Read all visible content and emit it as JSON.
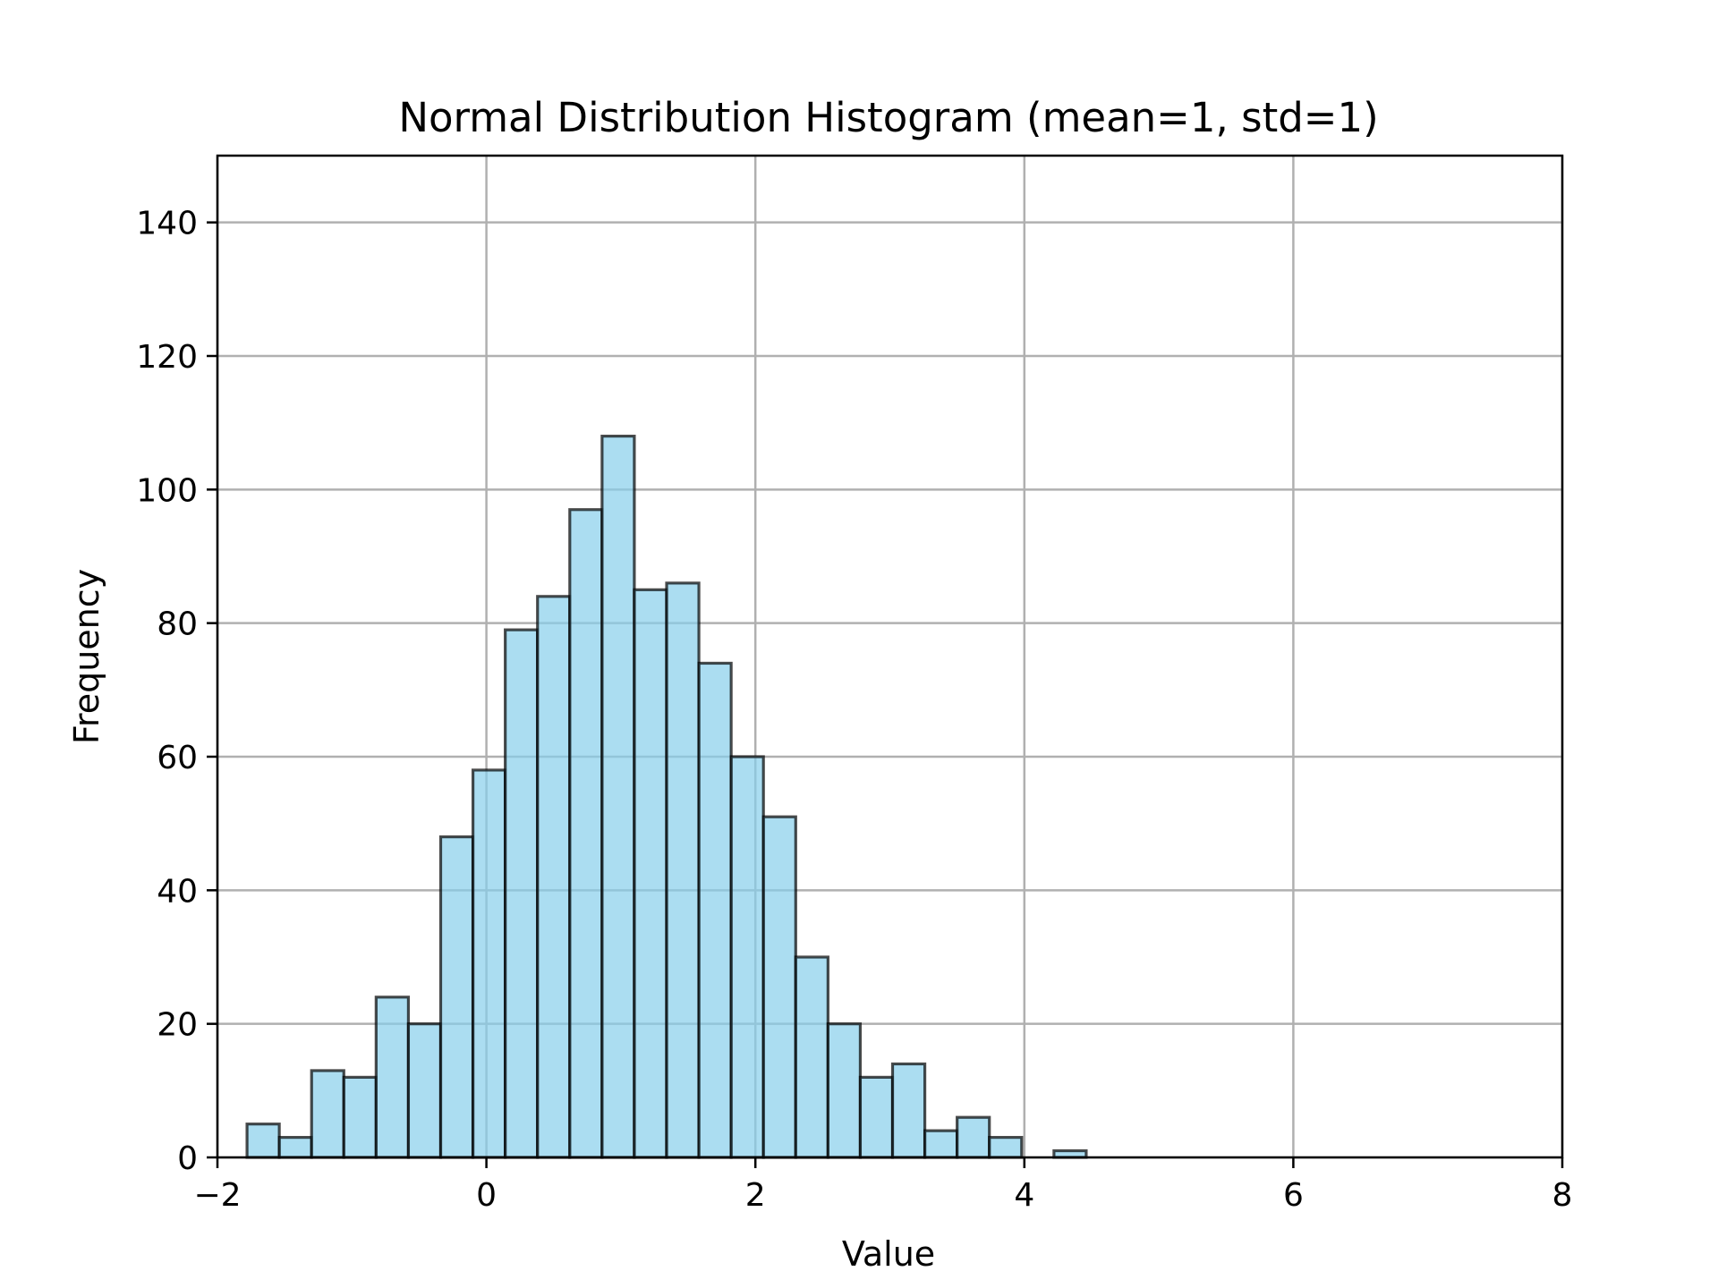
{
  "chart_data": {
    "type": "bar",
    "title": "Normal Distribution Histogram (mean=1, std=1)",
    "xlabel": "Value",
    "ylabel": "Frequency",
    "xlim": [
      -2,
      8
    ],
    "ylim": [
      0,
      150
    ],
    "grid": true,
    "bar_color": "#87ceeb",
    "edge_color": "#000000",
    "x_ticks": [
      -2,
      0,
      2,
      4,
      6,
      8
    ],
    "x_tick_labels": [
      "−2",
      "0",
      "2",
      "4",
      "6",
      "8"
    ],
    "y_ticks": [
      0,
      20,
      40,
      60,
      80,
      100,
      120,
      140
    ],
    "y_tick_labels": [
      "0",
      "20",
      "40",
      "60",
      "80",
      "100",
      "120",
      "140"
    ],
    "bin_edges": [
      -1.78,
      -1.54,
      -1.3,
      -1.06,
      -0.82,
      -0.58,
      -0.34,
      -0.1,
      0.14,
      0.38,
      0.62,
      0.86,
      1.1,
      1.34,
      1.58,
      1.82,
      2.06,
      2.3,
      2.54,
      2.78,
      3.02,
      3.26,
      3.5,
      3.74,
      3.98,
      4.22,
      4.46
    ],
    "values": [
      5,
      3,
      13,
      12,
      24,
      20,
      48,
      58,
      79,
      84,
      97,
      108,
      85,
      86,
      74,
      60,
      51,
      30,
      20,
      12,
      14,
      4,
      6,
      3,
      0,
      1
    ]
  }
}
